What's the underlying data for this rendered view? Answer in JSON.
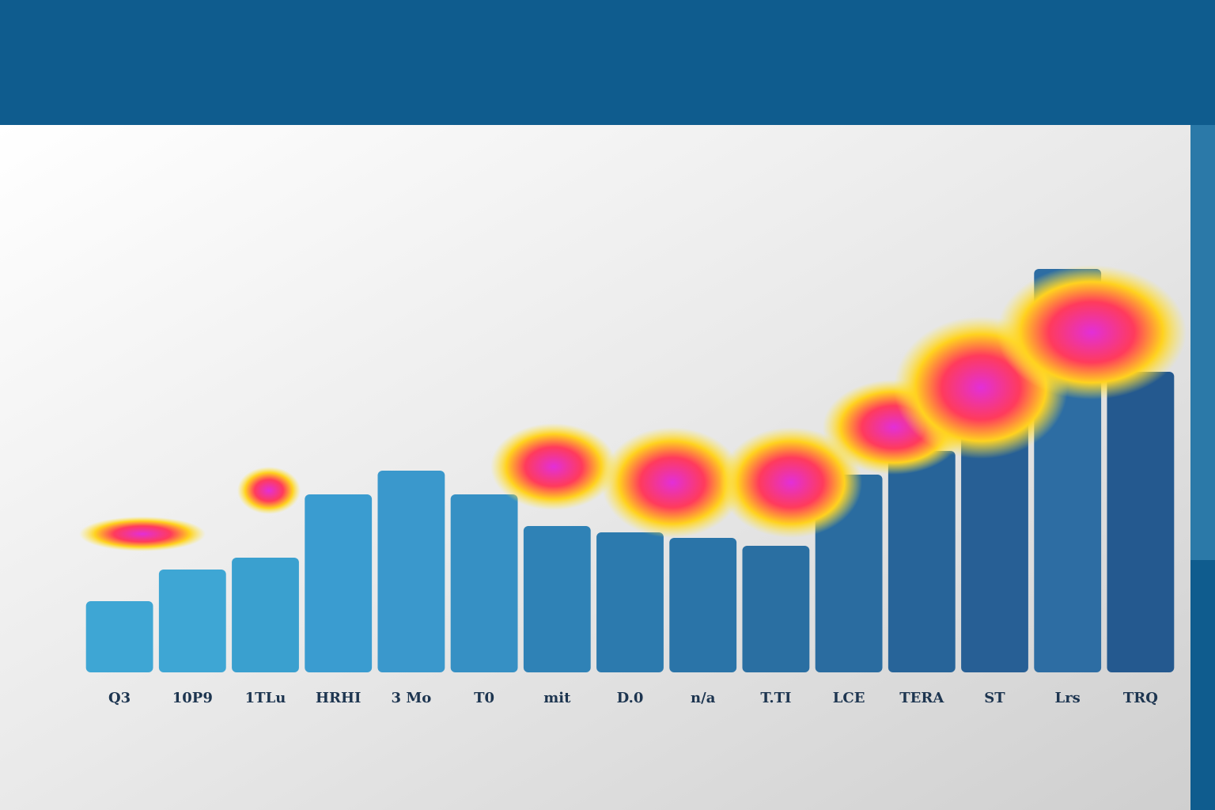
{
  "chart_data": {
    "type": "bar",
    "categories": [
      "Q3",
      "10P9",
      "1TLu",
      "HRHI",
      "3 Mo",
      "T0",
      "mit",
      "D.0",
      "n/a",
      "T.TI",
      "LCE",
      "TERA",
      "ST",
      "Lrs",
      "TRQ"
    ],
    "values": [
      90,
      130,
      145,
      225,
      255,
      225,
      185,
      177,
      170,
      160,
      250,
      280,
      350,
      510,
      380
    ],
    "colors": [
      "#3ea6d4",
      "#3ea6d4",
      "#3aa0cf",
      "#3a9cd0",
      "#3a98cc",
      "#3690c4",
      "#2f82b6",
      "#2c7aae",
      "#2a74a8",
      "#2a6fa2",
      "#2a6ca0",
      "#276499",
      "#275f95",
      "#2d6da3",
      "#24598f"
    ],
    "ylim": [
      0,
      600
    ]
  }
}
